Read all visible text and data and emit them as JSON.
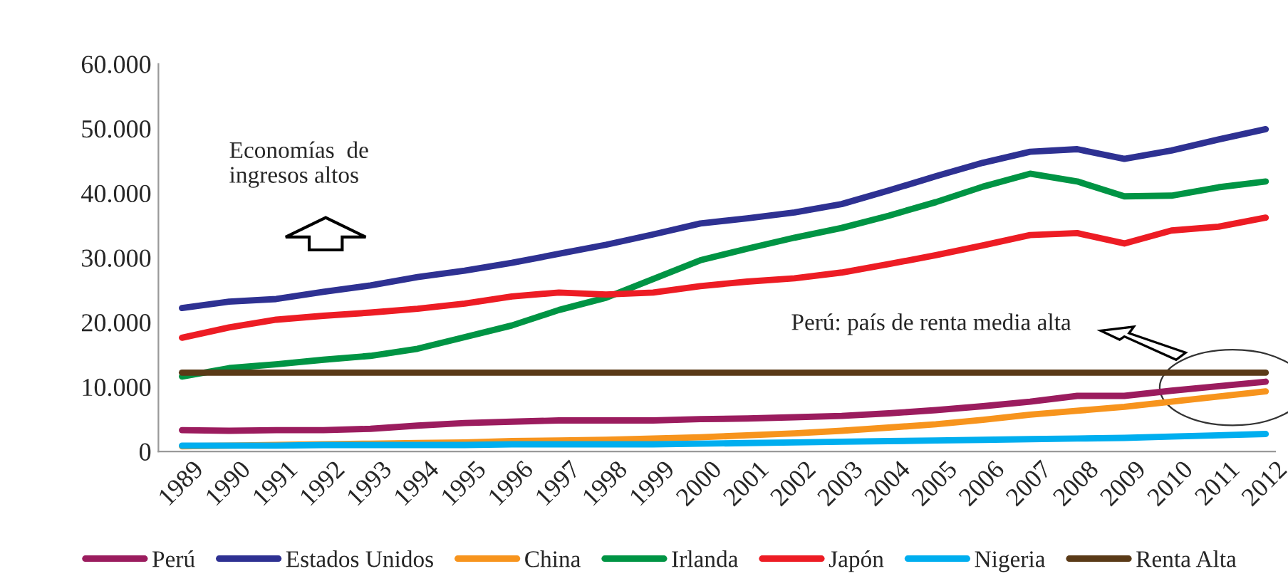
{
  "chart_data": {
    "type": "line",
    "categories": [
      "1989",
      "1990",
      "1991",
      "1992",
      "1993",
      "1994",
      "1995",
      "1996",
      "1997",
      "1998",
      "1999",
      "2000",
      "2001",
      "2002",
      "2003",
      "2004",
      "2005",
      "2006",
      "2007",
      "2008",
      "2009",
      "2010",
      "2011",
      "2012"
    ],
    "series": [
      {
        "name": "Perú",
        "color": "#9b1c5e",
        "values": [
          3300,
          3200,
          3300,
          3300,
          3500,
          4000,
          4400,
          4600,
          4800,
          4800,
          4800,
          5000,
          5100,
          5300,
          5500,
          5900,
          6400,
          7000,
          7700,
          8600,
          8600,
          9400,
          10100,
          10800
        ]
      },
      {
        "name": "Estados Unidos",
        "color": "#2e3192",
        "values": [
          22200,
          23200,
          23600,
          24700,
          25700,
          27000,
          28000,
          29200,
          30600,
          32000,
          33600,
          35300,
          36100,
          37000,
          38300,
          40400,
          42600,
          44700,
          46400,
          46800,
          45300,
          46600,
          48300,
          49900
        ]
      },
      {
        "name": "China",
        "color": "#f7941d",
        "values": [
          800,
          900,
          1000,
          1100,
          1200,
          1300,
          1400,
          1600,
          1700,
          1800,
          2000,
          2200,
          2500,
          2800,
          3200,
          3700,
          4200,
          4900,
          5700,
          6300,
          6900,
          7700,
          8500,
          9300
        ]
      },
      {
        "name": "Irlanda",
        "color": "#009444",
        "values": [
          11600,
          12900,
          13500,
          14200,
          14800,
          15900,
          17700,
          19500,
          21900,
          23800,
          26700,
          29600,
          31400,
          33100,
          34600,
          36500,
          38600,
          41000,
          43000,
          41800,
          39500,
          39600,
          40900,
          41800
        ]
      },
      {
        "name": "Japón",
        "color": "#ed1c24",
        "values": [
          17600,
          19200,
          20400,
          21000,
          21500,
          22100,
          22900,
          24000,
          24600,
          24300,
          24600,
          25600,
          26300,
          26800,
          27700,
          29000,
          30400,
          31900,
          33500,
          33800,
          32200,
          34200,
          34800,
          36200
        ]
      },
      {
        "name": "Nigeria",
        "color": "#00aeef",
        "values": [
          900,
          900,
          900,
          1000,
          1000,
          1000,
          1000,
          1100,
          1100,
          1100,
          1100,
          1200,
          1300,
          1400,
          1500,
          1600,
          1700,
          1800,
          1900,
          2000,
          2100,
          2300,
          2500,
          2700
        ]
      },
      {
        "name": "Renta Alta",
        "color": "#5a3a17",
        "values": [
          12200,
          12200,
          12200,
          12200,
          12200,
          12200,
          12200,
          12200,
          12200,
          12200,
          12200,
          12200,
          12200,
          12200,
          12200,
          12200,
          12200,
          12200,
          12200,
          12200,
          12200,
          12200,
          12200,
          12200
        ]
      }
    ],
    "ylim": [
      0,
      60000
    ],
    "yticks": [
      0,
      {
        "value": 10000,
        "label": "10.000"
      },
      {
        "value": 20000,
        "label": "20.000"
      },
      {
        "value": 30000,
        "label": "30.000"
      },
      {
        "value": 40000,
        "label": "40.000"
      },
      {
        "value": 50000,
        "label": "50.000"
      },
      {
        "value": 60000,
        "label": "60.000"
      }
    ],
    "annotations": [
      "Economías  de\ningresos altos",
      "Perú: país de renta media alta"
    ],
    "legend": "bottom",
    "grid": false,
    "marker": "none",
    "line_style": "solid"
  }
}
